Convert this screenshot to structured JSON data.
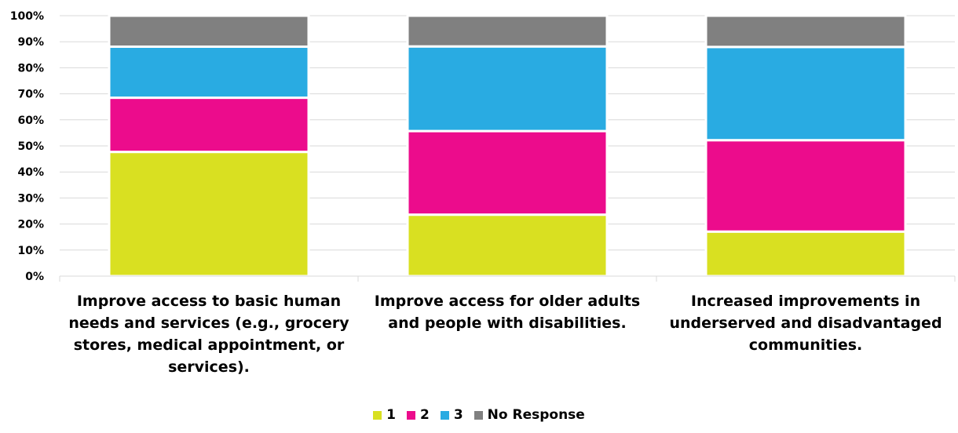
{
  "chart_data": {
    "type": "bar",
    "stacked": true,
    "percent": true,
    "categories": [
      "Improve access to basic human needs and services (e.g., grocery stores, medical appointment, or services).",
      "Improve access for older adults and people with disabilities.",
      "Increased improvements in underserved and disadvantaged communities."
    ],
    "series": [
      {
        "name": "1",
        "color": "#d9e021",
        "values": [
          47.7,
          23.6,
          17.1
        ]
      },
      {
        "name": "2",
        "color": "#ec0c8c",
        "values": [
          20.8,
          32.1,
          35.1
        ]
      },
      {
        "name": "3",
        "color": "#29abe2",
        "values": [
          19.6,
          32.5,
          35.8
        ]
      },
      {
        "name": "No Response",
        "color": "#808080",
        "values": [
          11.9,
          11.8,
          12.0
        ]
      }
    ],
    "yticks": [
      "0%",
      "10%",
      "20%",
      "30%",
      "40%",
      "50%",
      "60%",
      "70%",
      "80%",
      "90%",
      "100%"
    ],
    "ylim": [
      0,
      100
    ],
    "grid": true,
    "legend_position": "bottom"
  }
}
